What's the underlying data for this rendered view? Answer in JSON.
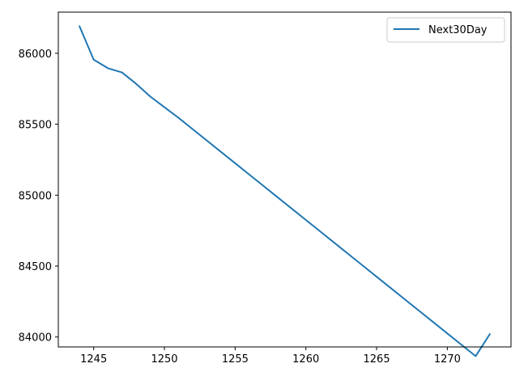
{
  "chart_data": {
    "type": "line",
    "title": "",
    "xlabel": "",
    "ylabel": "",
    "xlim": [
      1242.5,
      1274.5
    ],
    "ylim": [
      83930,
      86290
    ],
    "grid": false,
    "legend_position": "top-right",
    "x_ticks": [
      1245,
      1250,
      1255,
      1260,
      1265,
      1270
    ],
    "x_tick_labels": [
      "1245",
      "1250",
      "1255",
      "1260",
      "1265",
      "1270"
    ],
    "y_ticks": [
      84000,
      84500,
      85000,
      85500,
      86000
    ],
    "y_tick_labels": [
      "84000",
      "84500",
      "85000",
      "85500",
      "86000"
    ],
    "series": [
      {
        "name": "Next30Day",
        "color": "#1f77b4",
        "x": [
          1244,
          1245,
          1246,
          1247,
          1248,
          1249,
          1250,
          1251,
          1252,
          1253,
          1254,
          1255,
          1256,
          1257,
          1258,
          1259,
          1260,
          1261,
          1262,
          1263,
          1264,
          1265,
          1266,
          1267,
          1268,
          1269,
          1270,
          1271,
          1272,
          1273
        ],
        "y": [
          86190,
          85955,
          85895,
          85865,
          85785,
          85695,
          85620,
          85545,
          85465,
          85385,
          85305,
          85225,
          85145,
          85065,
          84985,
          84905,
          84825,
          84745,
          84665,
          84585,
          84505,
          84425,
          84345,
          84265,
          84185,
          84105,
          84025,
          83945,
          83865,
          84020
        ]
      }
    ]
  }
}
